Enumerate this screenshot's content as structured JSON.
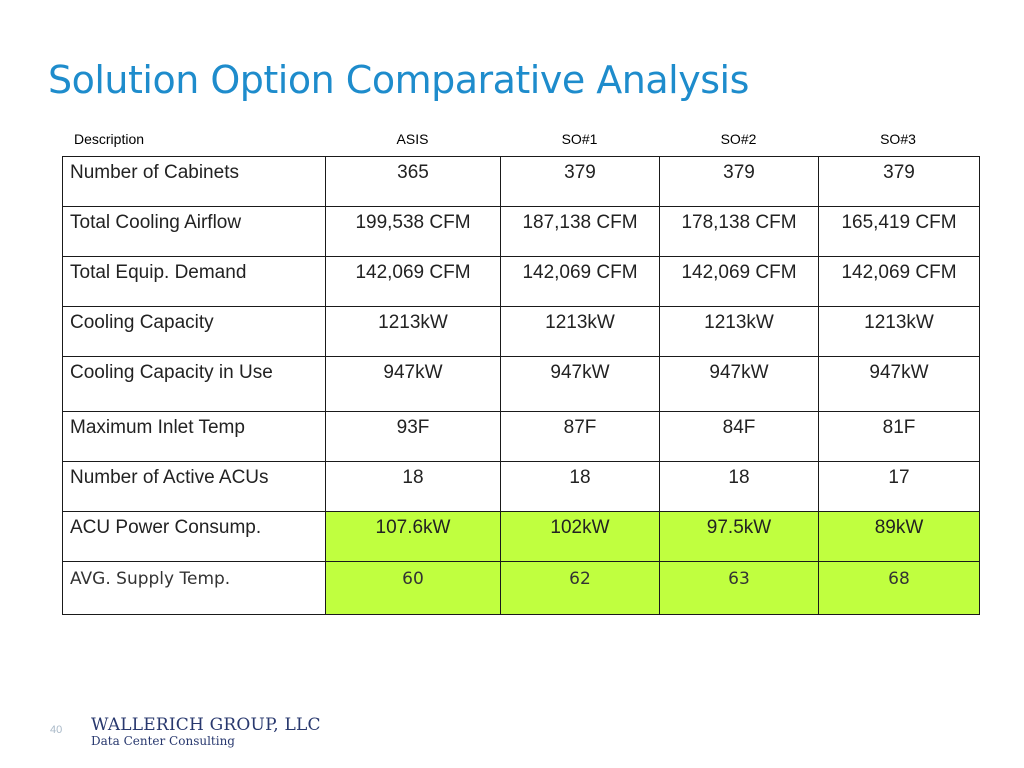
{
  "title": "Solution Option Comparative Analysis",
  "table": {
    "headers": [
      "Description",
      "ASIS",
      "SO#1",
      "SO#2",
      "SO#3"
    ],
    "rows": [
      {
        "label": "Number of Cabinets",
        "values": [
          "365",
          "379",
          "379",
          "379"
        ]
      },
      {
        "label": "Total Cooling Airflow",
        "values": [
          "199,538 CFM",
          "187,138 CFM",
          "178,138 CFM",
          "165,419 CFM"
        ]
      },
      {
        "label": "Total Equip. Demand",
        "values": [
          "142,069 CFM",
          "142,069 CFM",
          "142,069 CFM",
          "142,069 CFM"
        ]
      },
      {
        "label": "Cooling Capacity",
        "values": [
          "1213kW",
          "1213kW",
          "1213kW",
          "1213kW"
        ]
      },
      {
        "label": "Cooling Capacity in Use",
        "values": [
          "947kW",
          "947kW",
          "947kW",
          "947kW"
        ]
      },
      {
        "label": "Maximum Inlet Temp",
        "values": [
          "93F",
          "87F",
          "84F",
          "81F"
        ]
      },
      {
        "label": "Number of Active ACUs",
        "values": [
          "18",
          "18",
          "18",
          "17"
        ]
      },
      {
        "label": "ACU Power Consump.",
        "values": [
          "107.6kW",
          "102kW",
          "97.5kW",
          "89kW"
        ]
      },
      {
        "label": "AVG. Supply Temp.",
        "values": [
          "60",
          "62",
          "63",
          "68"
        ]
      }
    ],
    "highlight_color": "#c0ff3f"
  },
  "footer": {
    "page_number": "40",
    "logo_name": "WALLERICH GROUP, LLC",
    "logo_tagline": "Data Center Consulting"
  },
  "colors": {
    "title": "#1e8ccc",
    "logo": "#28386e"
  }
}
